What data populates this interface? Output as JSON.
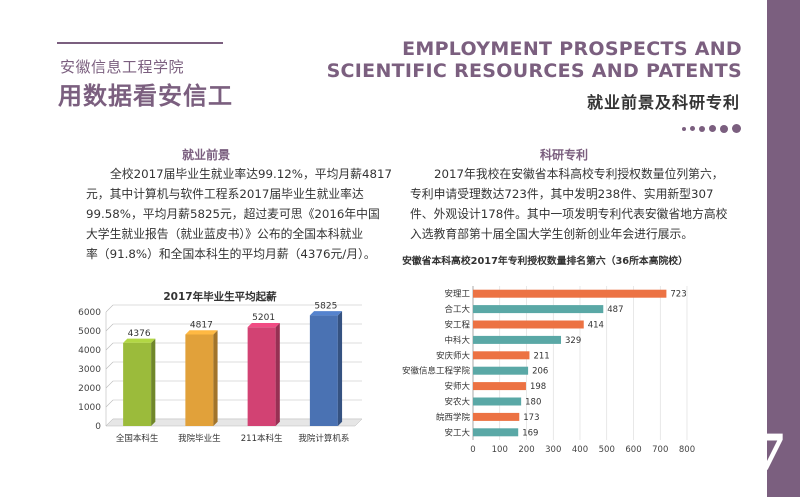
{
  "header": {
    "school_name": "安徽信息工程学院",
    "slogan": "用数据看安信工",
    "en_title_line1": "EMPLOYMENT PROSPECTS AND",
    "en_title_line2": "SCIENTIFIC RESOURCES AND PATENTS",
    "cn_title": "就业前景及科研专利"
  },
  "page_number": "7",
  "employment": {
    "heading": "就业前景",
    "lines": [
      "全校2017届毕业生就业率达99.12%，平均月薪4817",
      "元，其中计算机与软件工程系2017届毕业生就业率达",
      "99.58%，平均月薪5825元，超过麦可思《2016年中国",
      "大学生就业报告（就业蓝皮书）》公布的全国本科就业",
      "率（91.8%）和全国本科生的平均月薪（4376元/月）。"
    ]
  },
  "research": {
    "heading": "科研专利",
    "lines": [
      "2017年我校在安徽省本科高校专利授权数量位列第六，",
      "专利申请受理数达723件，其中发明238件、实用新型307",
      "件、外观设计178件。其中一项发明专利代表安徽省地方高校",
      "入选教育部第十届全国大学生创新创业年会进行展示。"
    ]
  },
  "colors": {
    "accent": "#7b5f7f",
    "bar_green": "#9bbb3b",
    "bar_gold": "#e1a13a",
    "bar_pink": "#d24273",
    "bar_blue": "#4a72b3",
    "hbar_orange": "#ec7243",
    "hbar_teal": "#5aa8a6"
  },
  "chart_data": [
    {
      "type": "bar",
      "title": "2017年毕业生平均起薪",
      "categories": [
        "全国本科生",
        "我院毕业生",
        "211本科生",
        "我院计算机系"
      ],
      "values": [
        4376,
        4817,
        5201,
        5825
      ],
      "ylim": [
        0,
        6000
      ],
      "yticks": [
        0,
        1000,
        2000,
        3000,
        4000,
        5000,
        6000
      ],
      "grid": true,
      "style": "3d"
    },
    {
      "type": "bar",
      "orientation": "horizontal",
      "title": "安徽省本科高校2017年专利授权数量排名第六（36所本高院校）",
      "categories": [
        "安理工",
        "合工大",
        "安工程",
        "中科大",
        "安庆师大",
        "安徽信息工程学院",
        "安师大",
        "安农大",
        "皖西学院",
        "安工大"
      ],
      "values": [
        723,
        487,
        414,
        329,
        211,
        206,
        198,
        180,
        173,
        169
      ],
      "xlim": [
        0,
        800
      ],
      "xticks": [
        0,
        100,
        200,
        300,
        400,
        500,
        600,
        700,
        800
      ],
      "grid": true
    }
  ]
}
